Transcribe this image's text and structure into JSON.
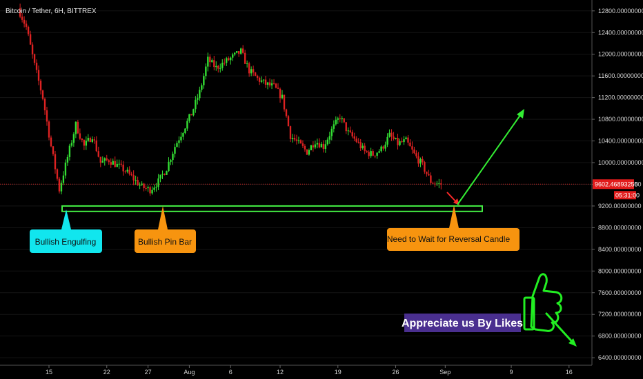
{
  "chart_data": {
    "type": "candlestick",
    "title": "Bitcoin / Tether, 6H, BITTREX",
    "ylim": [
      6300,
      12950
    ],
    "y_ticks": [
      "12800.00000000",
      "12400.00000000",
      "12000.00000000",
      "11600.00000000",
      "11200.00000000",
      "10800.00000000",
      "10400.00000000",
      "10000.00000000",
      "9600.00000000",
      "9200.00000000",
      "8800.00000000",
      "8400.00000000",
      "8000.00000000",
      "7600.00000000",
      "7200.00000000",
      "6800.00000000",
      "6400.00000000"
    ],
    "y_tick_values": [
      12800,
      12400,
      12000,
      11600,
      11200,
      10800,
      10400,
      10000,
      9600,
      9200,
      8800,
      8400,
      8000,
      7600,
      7200,
      6800,
      6400
    ],
    "x_ticks": [
      "15",
      "22",
      "27",
      "Aug",
      "6",
      "12",
      "19",
      "26",
      "Sep",
      "9",
      "16"
    ],
    "x_ticks_day_index": [
      0,
      7,
      12,
      17,
      22,
      28,
      35,
      42,
      48,
      56,
      63
    ],
    "x_start_label": "15",
    "series": [
      {
        "points": [
          [
            -3.5,
            12850
          ],
          [
            -2.5,
            12500
          ],
          [
            -1.5,
            11800
          ],
          [
            -0.5,
            11200
          ],
          [
            0.5,
            10300
          ],
          [
            1.5,
            9500
          ],
          [
            2.5,
            10100
          ],
          [
            3.5,
            10700
          ],
          [
            4.5,
            10300
          ],
          [
            5.5,
            10500
          ],
          [
            6.5,
            10000
          ],
          [
            7.5,
            10050
          ],
          [
            8.5,
            9950
          ],
          [
            9.5,
            9850
          ],
          [
            10.5,
            9700
          ],
          [
            11.5,
            9550
          ],
          [
            12.5,
            9500
          ],
          [
            13.5,
            9650
          ],
          [
            14.5,
            9900
          ],
          [
            15.5,
            10300
          ],
          [
            16.5,
            10600
          ],
          [
            17.5,
            10900
          ],
          [
            18.5,
            11300
          ],
          [
            19.5,
            11900
          ],
          [
            20.5,
            11750
          ],
          [
            21.5,
            11850
          ],
          [
            22.5,
            11950
          ],
          [
            23.5,
            12050
          ],
          [
            24.5,
            11700
          ],
          [
            25.5,
            11550
          ],
          [
            26.5,
            11450
          ],
          [
            27.5,
            11400
          ],
          [
            28.5,
            11200
          ],
          [
            29.5,
            10500
          ],
          [
            30.5,
            10350
          ],
          [
            31.5,
            10200
          ],
          [
            32.5,
            10400
          ],
          [
            33.5,
            10300
          ],
          [
            34.5,
            10600
          ],
          [
            35.5,
            10850
          ],
          [
            36.5,
            10550
          ],
          [
            37.5,
            10400
          ],
          [
            38.5,
            10200
          ],
          [
            39.5,
            10150
          ],
          [
            40.5,
            10250
          ],
          [
            41.5,
            10500
          ],
          [
            42.5,
            10350
          ],
          [
            43.5,
            10400
          ],
          [
            44.5,
            10150
          ],
          [
            45.5,
            9950
          ],
          [
            46.5,
            9650
          ],
          [
            47.5,
            9600
          ]
        ]
      }
    ],
    "last_price": "9602.46893255",
    "countdown": "05:31:00",
    "support_zone": [
      9100,
      9200
    ],
    "annotations": {
      "bullish_engulfing": "Bullish Engulfing",
      "bullish_pin_bar": "Bullish Pin Bar",
      "reversal": "Need to Wait for Reversal Candle",
      "likes": "Appreciate us By Likes"
    },
    "colors": {
      "up": "#33dd33",
      "down": "#dd2222",
      "background": "#000000",
      "zone": "#44ee44",
      "price_line": "#cc2222",
      "cyan_callout": "#11e6ee",
      "orange_callout": "#f7940f",
      "likes_bg": "#4a2f8f"
    }
  }
}
